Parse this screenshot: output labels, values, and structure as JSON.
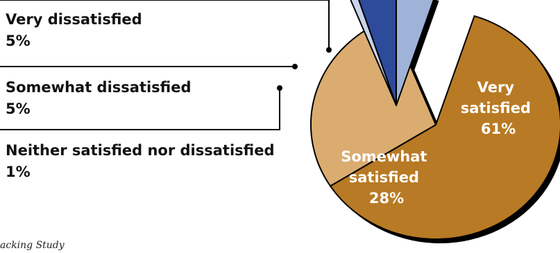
{
  "chart_data": {
    "type": "pie",
    "slices": [
      {
        "label_lines": [
          "Very",
          "satisfied"
        ],
        "percent_label": "61%",
        "value": 61,
        "color": "#B87A24"
      },
      {
        "label_lines": [
          "Somewhat",
          "satisfied"
        ],
        "percent_label": "28%",
        "value": 28,
        "color": "#DBAC70"
      },
      {
        "label_lines": [
          "Neither satisfied nor dissatisfied"
        ],
        "percent_label": "1%",
        "value": 1,
        "color": "#C9D3EA"
      },
      {
        "label_lines": [
          "Somewhat dissatisfied"
        ],
        "percent_label": "5%",
        "value": 5,
        "color": "#2E4A9A"
      },
      {
        "label_lines": [
          "Very dissatisfied"
        ],
        "percent_label": "5%",
        "value": 5,
        "color": "#9FB3D9"
      }
    ],
    "exploded": [
      "Neither satisfied nor dissatisfied",
      "Somewhat dissatisfied",
      "Very dissatisfied"
    ],
    "outline_color": "#000000"
  },
  "footer": {
    "source": "acking Study"
  }
}
